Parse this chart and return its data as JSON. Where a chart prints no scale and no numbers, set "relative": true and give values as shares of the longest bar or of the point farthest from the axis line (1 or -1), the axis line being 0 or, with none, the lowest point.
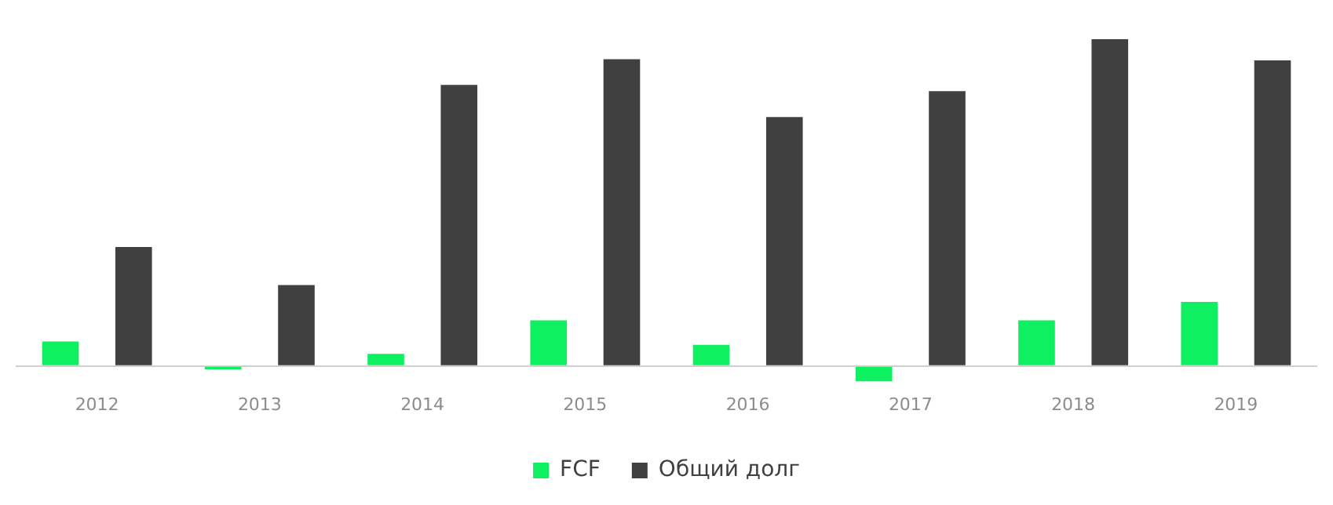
{
  "chart_data": {
    "type": "bar",
    "relative": true,
    "categories": [
      "2012",
      "2013",
      "2014",
      "2015",
      "2016",
      "2017",
      "2018",
      "2019"
    ],
    "series": [
      {
        "name": "FCF",
        "color": "#0ef060",
        "values": [
          0.075,
          -0.01,
          0.037,
          0.14,
          0.065,
          -0.047,
          0.14,
          0.196
        ]
      },
      {
        "name": "Общий долг",
        "color": "#404040",
        "values": [
          0.364,
          0.248,
          0.86,
          0.939,
          0.762,
          0.841,
          1,
          0.935
        ]
      }
    ],
    "legend": "bottom",
    "grid": false
  }
}
